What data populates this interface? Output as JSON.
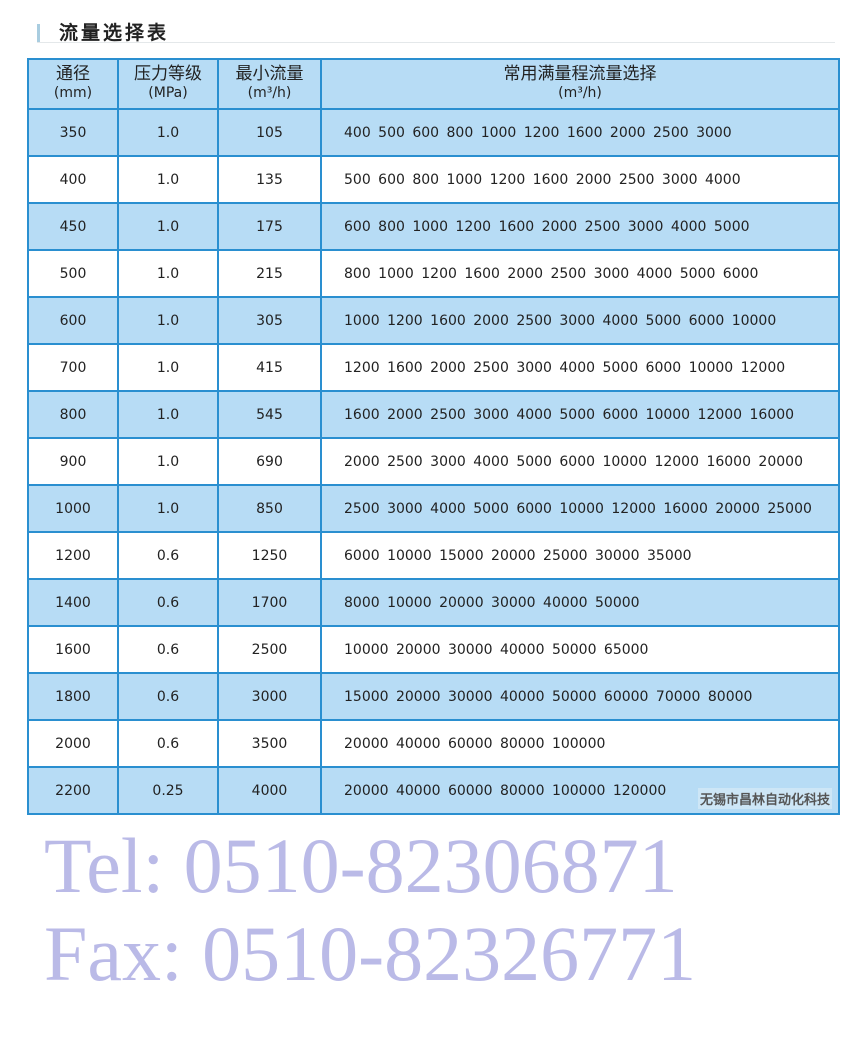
{
  "title": "流量选择表",
  "headers": [
    {
      "label": "通径",
      "unit": "(mm)"
    },
    {
      "label": "压力等级",
      "unit": "(MPa)"
    },
    {
      "label": "最小流量",
      "unit": "(m³/h)"
    },
    {
      "label": "常用满量程流量选择",
      "unit": "(m³/h)"
    }
  ],
  "rows": [
    {
      "dn": "350",
      "pressure": "1.0",
      "min": "105",
      "ranges": "400 500 600 800 1000 1200 1600 2000 2500 3000"
    },
    {
      "dn": "400",
      "pressure": "1.0",
      "min": "135",
      "ranges": "500 600 800 1000 1200 1600 2000 2500 3000 4000"
    },
    {
      "dn": "450",
      "pressure": "1.0",
      "min": "175",
      "ranges": "600 800 1000 1200 1600 2000 2500 3000 4000 5000"
    },
    {
      "dn": "500",
      "pressure": "1.0",
      "min": "215",
      "ranges": "800 1000 1200 1600 2000 2500 3000 4000 5000 6000"
    },
    {
      "dn": "600",
      "pressure": "1.0",
      "min": "305",
      "ranges": "1000 1200 1600 2000 2500 3000 4000 5000 6000 10000"
    },
    {
      "dn": "700",
      "pressure": "1.0",
      "min": "415",
      "ranges": "1200 1600 2000 2500 3000 4000 5000 6000 10000 12000"
    },
    {
      "dn": "800",
      "pressure": "1.0",
      "min": "545",
      "ranges": "1600 2000 2500 3000 4000 5000 6000 10000 12000 16000"
    },
    {
      "dn": "900",
      "pressure": "1.0",
      "min": "690",
      "ranges": "2000 2500 3000 4000 5000 6000 10000 12000 16000 20000"
    },
    {
      "dn": "1000",
      "pressure": "1.0",
      "min": "850",
      "ranges": "2500 3000 4000 5000 6000 10000 12000 16000 20000 25000"
    },
    {
      "dn": "1200",
      "pressure": "0.6",
      "min": "1250",
      "ranges": "6000 10000 15000 20000 25000 30000 35000"
    },
    {
      "dn": "1400",
      "pressure": "0.6",
      "min": "1700",
      "ranges": "8000 10000 20000 30000 40000 50000"
    },
    {
      "dn": "1600",
      "pressure": "0.6",
      "min": "2500",
      "ranges": "10000 20000 30000 40000 50000 65000"
    },
    {
      "dn": "1800",
      "pressure": "0.6",
      "min": "3000",
      "ranges": "15000 20000 30000 40000 50000 60000 70000 80000"
    },
    {
      "dn": "2000",
      "pressure": "0.6",
      "min": "3500",
      "ranges": "20000 40000 60000 80000 100000"
    },
    {
      "dn": "2200",
      "pressure": "0.25",
      "min": "4000",
      "ranges": "20000 40000 60000 80000 100000 120000"
    }
  ],
  "company": "无锡市昌林自动化科技",
  "watermark": {
    "tel": "Tel: 0510-82306871",
    "fax": "Fax: 0510-82326771"
  },
  "colors": {
    "border": "#2a8fd0",
    "row_fill": "#b7dcf5"
  }
}
